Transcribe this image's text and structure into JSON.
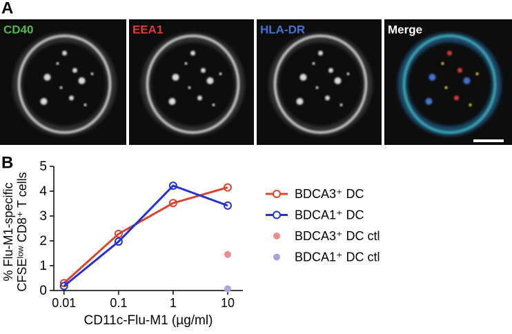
{
  "panel_a": {
    "letter": "A",
    "panels": [
      {
        "label": "CD40",
        "color": "#4cb84c"
      },
      {
        "label": "EEA1",
        "color": "#e03a3a"
      },
      {
        "label": "HLA-DR",
        "color": "#3f74cf"
      },
      {
        "label": "Merge",
        "color": "#ffffff"
      }
    ]
  },
  "chart_data": {
    "type": "line",
    "letter": "B",
    "x_label": "CD11c-Flu-M1 (µg/ml)",
    "y_label": [
      "% Flu-M1-specific",
      "CFSEˡᵒʷ CD8⁺ T cells"
    ],
    "x": [
      0.01,
      0.1,
      1,
      10
    ],
    "log_x": true,
    "xlim": [
      0.0065,
      19
    ],
    "xticks": [
      0.01,
      0.1,
      1,
      10
    ],
    "ylim": [
      0,
      5
    ],
    "yticks": [
      0,
      1,
      2,
      3,
      4,
      5
    ],
    "grid": false,
    "series": [
      {
        "name": "BDCA3⁺ DC",
        "color": "#d9442a",
        "marker_only": false,
        "values": [
          0.3,
          2.28,
          3.52,
          4.15
        ]
      },
      {
        "name": "BDCA1⁺ DC",
        "color": "#2430d0",
        "marker_only": false,
        "values": [
          0.18,
          1.97,
          4.22,
          3.42
        ]
      },
      {
        "name": "BDCA3⁺ DC ctl",
        "color": "#e8908a",
        "marker_only": true,
        "values": [
          null,
          null,
          null,
          1.45
        ]
      },
      {
        "name": "BDCA1⁺ DC ctl",
        "color": "#aaa4d8",
        "marker_only": true,
        "values": [
          null,
          null,
          null,
          0.07
        ]
      }
    ]
  }
}
